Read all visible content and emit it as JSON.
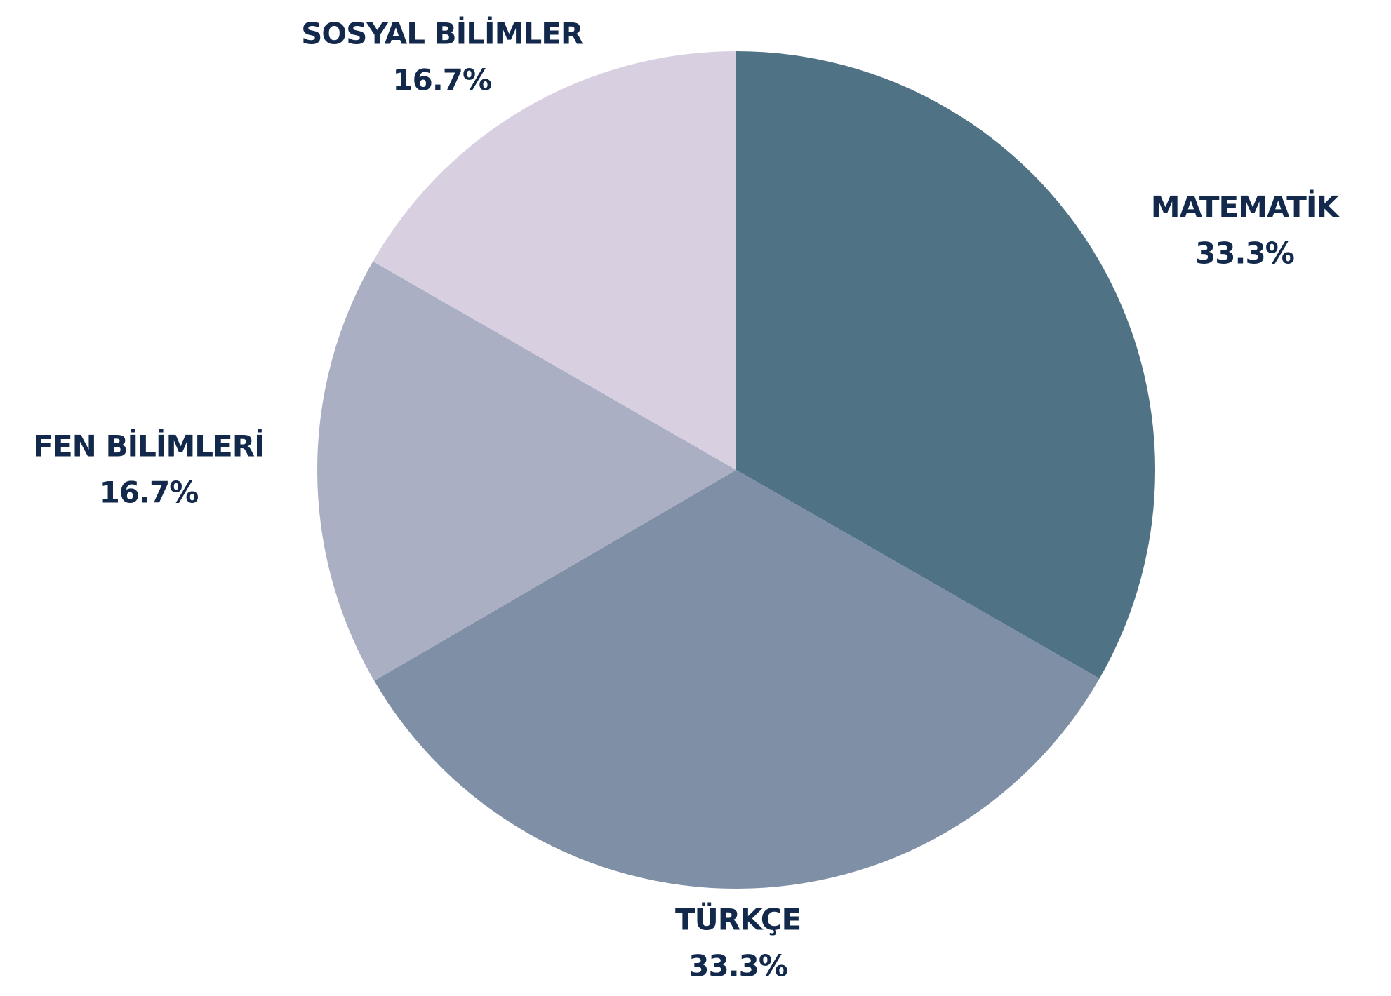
{
  "chart_data": {
    "type": "pie",
    "categories": [
      "MATEMATİK",
      "TÜRKÇE",
      "FEN BİLİMLERİ",
      "SOSYAL BİLİMLER"
    ],
    "values": [
      33.3,
      33.3,
      16.7,
      16.7
    ],
    "value_labels": [
      "33.3%",
      "33.3%",
      "16.7%",
      "16.7%"
    ],
    "colors": [
      "#4f7285",
      "#7f90a6",
      "#abafc4",
      "#d8d0e1"
    ]
  }
}
